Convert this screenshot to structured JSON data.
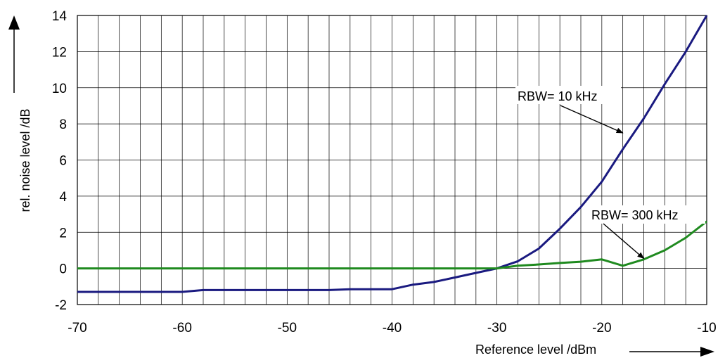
{
  "chart_data": {
    "type": "line",
    "xlabel": "Reference level /dBm",
    "ylabel": "rel. noise level /dB",
    "xlim": [
      -70,
      -10
    ],
    "ylim": [
      -2,
      14
    ],
    "x_ticks": [
      -70,
      -60,
      -50,
      -40,
      -30,
      -20,
      -10
    ],
    "y_ticks": [
      -2,
      0,
      2,
      4,
      6,
      8,
      10,
      12,
      14
    ],
    "x_tick_labels": [
      "-70",
      "-60",
      "-50",
      "-40",
      "-30",
      "-20",
      "-10"
    ],
    "y_tick_labels": [
      "-2",
      "0",
      "2",
      "4",
      "6",
      "8",
      "10",
      "12",
      "14"
    ],
    "grid": true,
    "legend": "none",
    "series": [
      {
        "name": "RBW= 10 kHz",
        "color": "#1a1a80",
        "x": [
          -70,
          -60,
          -58,
          -46,
          -44,
          -40,
          -38,
          -36,
          -34,
          -32,
          -30,
          -28,
          -26,
          -24,
          -22,
          -20,
          -18,
          -16,
          -14,
          -12,
          -10
        ],
        "y": [
          -1.3,
          -1.3,
          -1.2,
          -1.2,
          -1.15,
          -1.15,
          -0.9,
          -0.75,
          -0.5,
          -0.25,
          0,
          0.4,
          1.1,
          2.2,
          3.4,
          4.8,
          6.6,
          8.3,
          10.2,
          12.0,
          14.0
        ]
      },
      {
        "name": "RBW= 300 kHz",
        "color": "#1f8a1f",
        "x": [
          -70,
          -30,
          -28,
          -26,
          -24,
          -22,
          -20,
          -18,
          -16,
          -14,
          -12,
          -10
        ],
        "y": [
          0,
          0,
          0.15,
          0.22,
          0.3,
          0.37,
          0.5,
          0.15,
          0.5,
          1.0,
          1.7,
          2.6
        ]
      }
    ],
    "annotations": [
      {
        "text": "RBW= 10 kHz",
        "points_to_x": -18,
        "points_to_y": 7.5
      },
      {
        "text": "RBW= 300 kHz",
        "points_to_x": -16,
        "points_to_y": 0.55
      }
    ]
  }
}
